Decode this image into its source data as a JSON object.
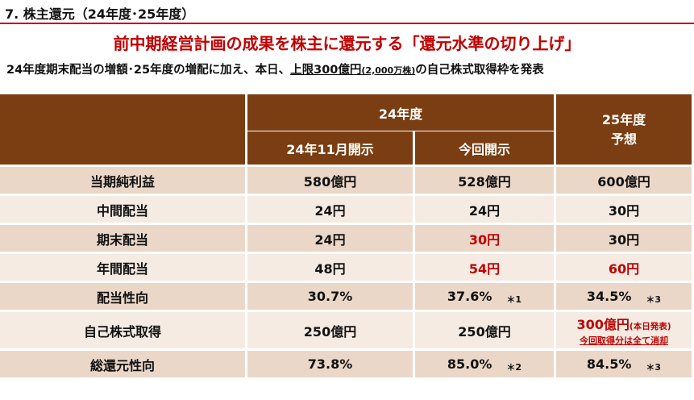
{
  "slide": {
    "title": "7. 株主還元（24年度･25年度）",
    "headline": "前中期経営計画の成果を株主に還元する「還元水準の切り上げ」",
    "subline_pre": "24年度期末配当の増額･25年度の増配に加え、本日、",
    "subline_underlined_main": "上限300億円",
    "subline_underlined_small": "(2,000万株)",
    "subline_post": "の自己株式取得枠を発表"
  },
  "table": {
    "group_header": "24年度",
    "col_nov": "24年11月開示",
    "col_current": "今回開示",
    "col_fy25": "25年度\n予想",
    "rows": [
      {
        "label": "当期純利益",
        "nov": "580億円",
        "current": "528億円",
        "fy25": "600億円"
      },
      {
        "label": "中間配当",
        "nov": "24円",
        "current": "24円",
        "fy25": "30円"
      },
      {
        "label": "期末配当",
        "nov": "24円",
        "current": "30円",
        "fy25": "30円"
      },
      {
        "label": "年間配当",
        "nov": "48円",
        "current": "54円",
        "fy25": "60円"
      },
      {
        "label": "配当性向",
        "nov": "30.7%",
        "current": "37.6%",
        "current_note": "＊1",
        "fy25": "34.5%",
        "fy25_note": "＊3"
      },
      {
        "label": "自己株式取得",
        "nov": "250億円",
        "current": "250億円",
        "fy25_main": "300億円",
        "fy25_small": "(本日発表)",
        "fy25_line2": "今回取得分は全て消却"
      },
      {
        "label": "総還元性向",
        "nov": "73.8%",
        "current": "85.0%",
        "current_note": "＊2",
        "fy25": "84.5%",
        "fy25_note": "＊3"
      }
    ]
  },
  "colors": {
    "accent_red": "#c00000",
    "header_brown": "#7a3e12",
    "row_dark": "#ead7c8",
    "row_light": "#f5ebe3"
  }
}
